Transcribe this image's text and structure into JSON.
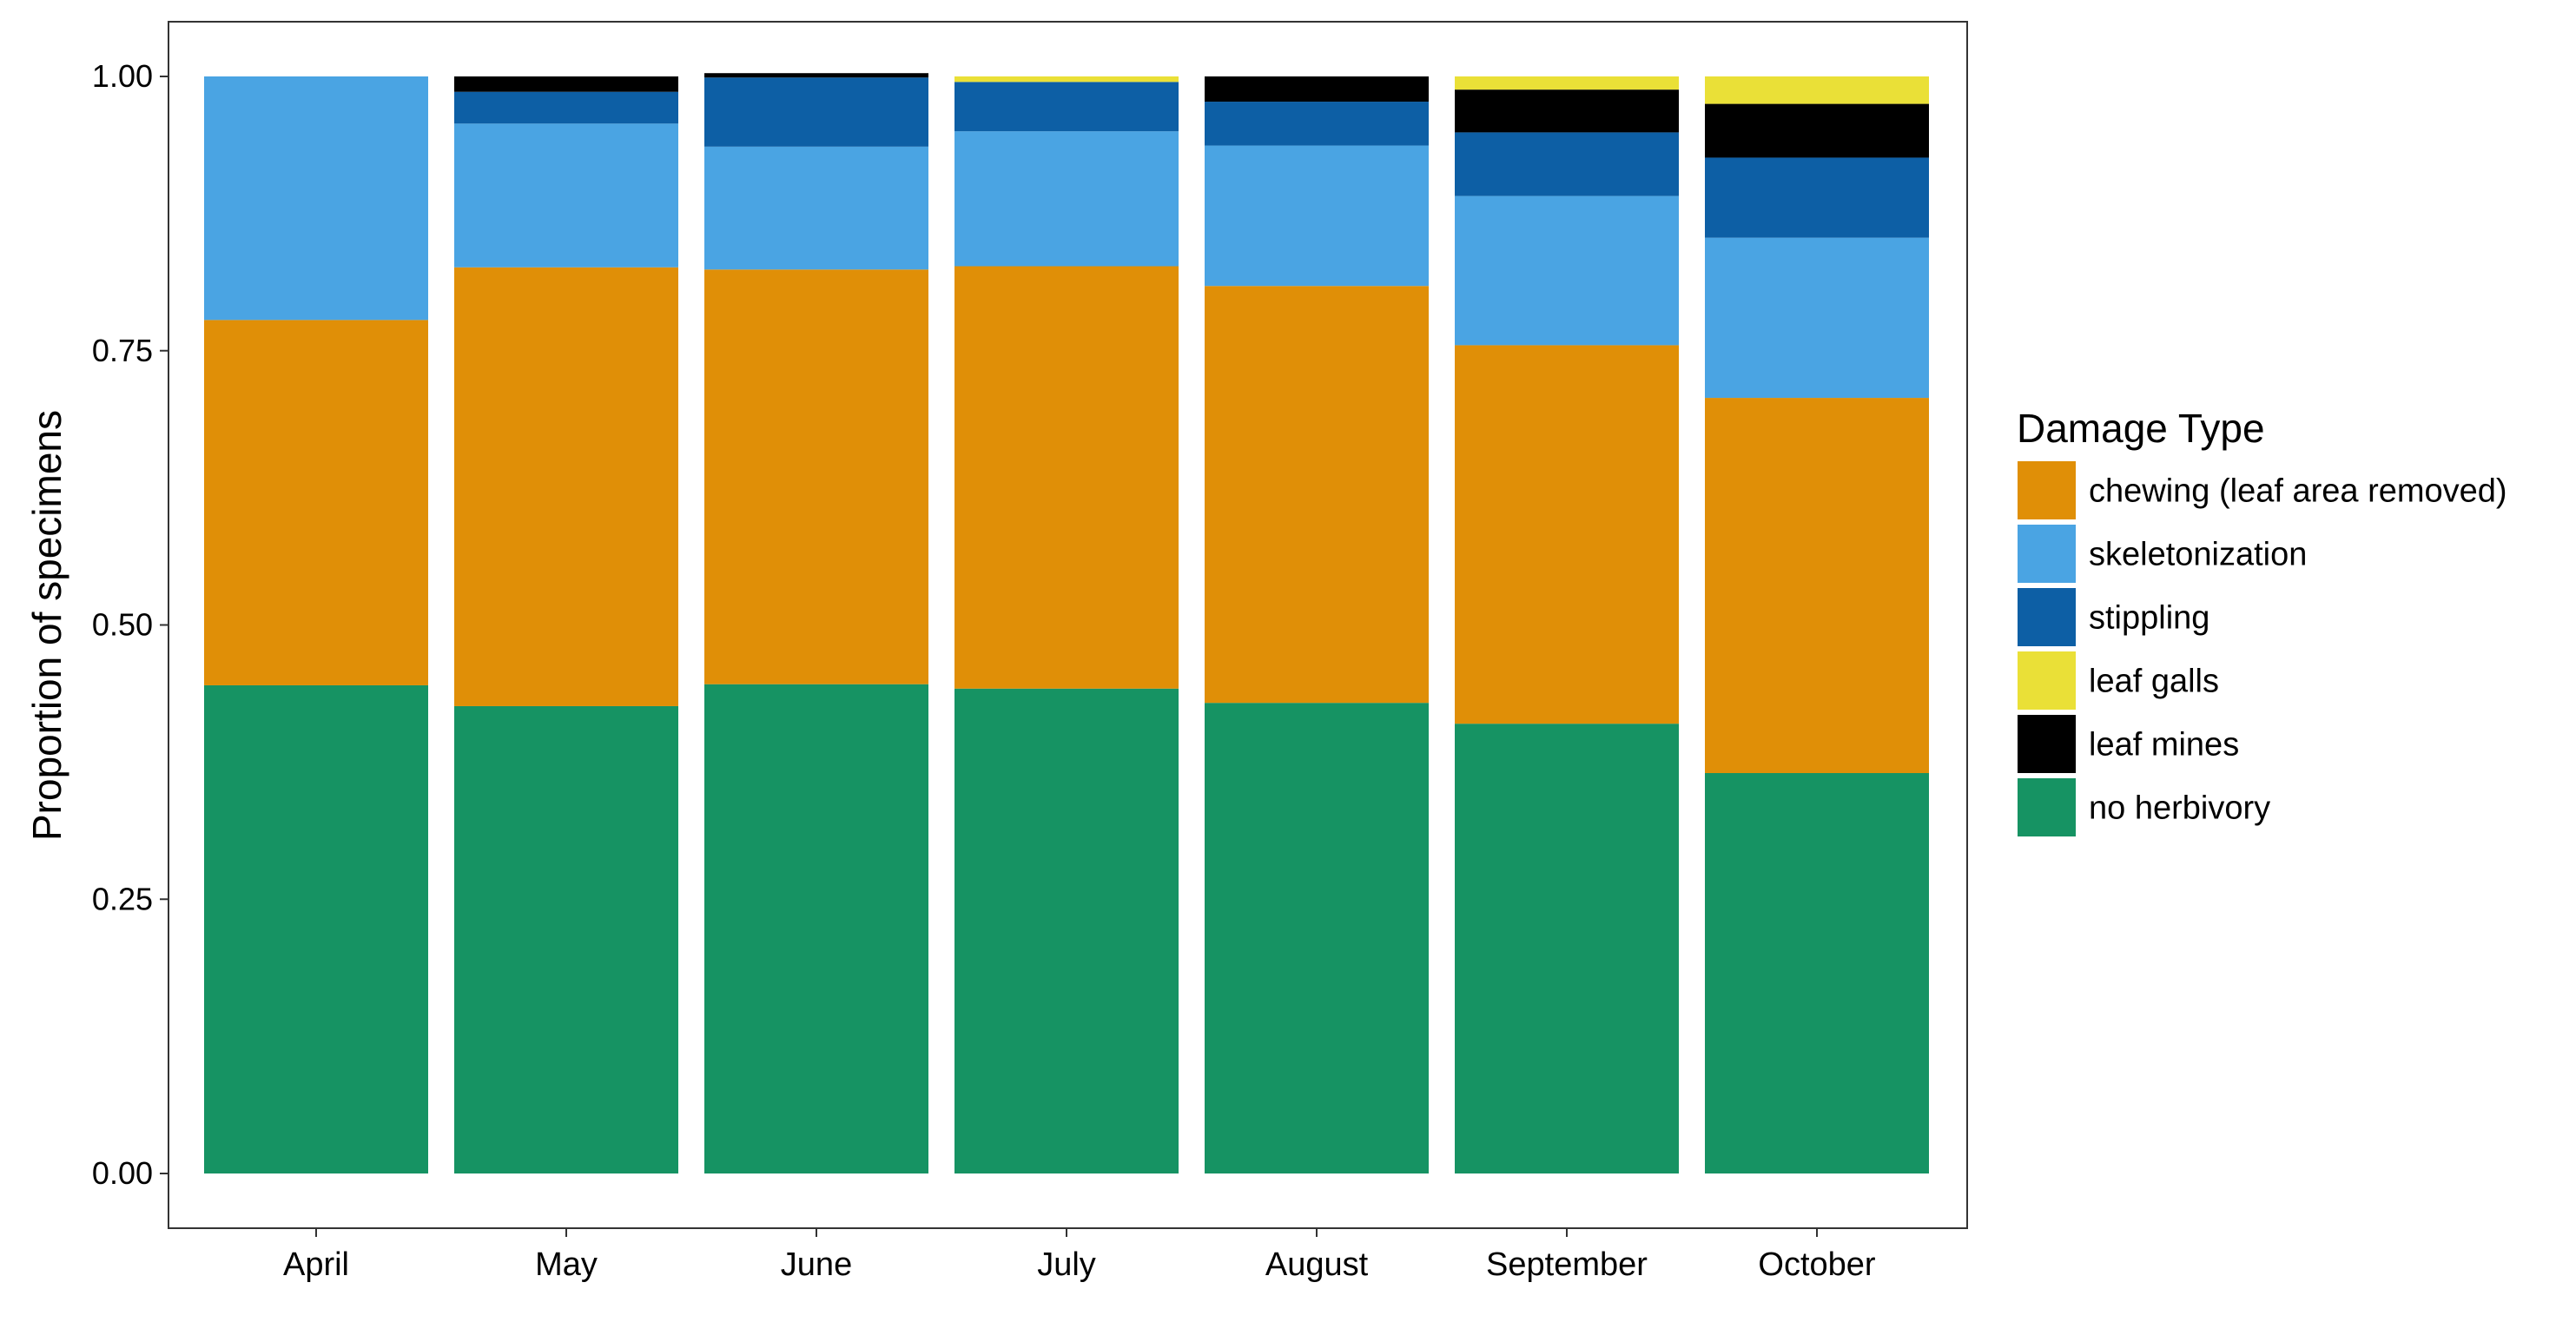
{
  "chart_data": {
    "type": "bar",
    "stacked": true,
    "categories": [
      "April",
      "May",
      "June",
      "July",
      "August",
      "September",
      "October"
    ],
    "ylabel": "Proportion of specimens",
    "xlabel": "",
    "ylim": [
      0,
      1
    ],
    "y_ticks": [
      "0.00",
      "0.25",
      "0.50",
      "0.75",
      "1.00"
    ],
    "legend": {
      "title": "Damage Type",
      "position": "right"
    },
    "stack_order": [
      "no herbivory",
      "chewing (leaf area removed)",
      "skeletonization",
      "stippling",
      "leaf mines",
      "leaf galls"
    ],
    "series": [
      {
        "name": "chewing (leaf area removed)",
        "color": "#E08F07",
        "values": [
          0.333,
          0.4,
          0.378,
          0.385,
          0.38,
          0.345,
          0.342
        ]
      },
      {
        "name": "skeletonization",
        "color": "#4AA4E3",
        "values": [
          0.222,
          0.131,
          0.112,
          0.123,
          0.128,
          0.136,
          0.146
        ]
      },
      {
        "name": "stippling",
        "color": "#0D5FA5",
        "values": [
          0.0,
          0.029,
          0.063,
          0.045,
          0.04,
          0.058,
          0.073
        ]
      },
      {
        "name": "leaf galls",
        "color": "#EAE037",
        "values": [
          0.0,
          0.0,
          0.0,
          0.005,
          0.0,
          0.012,
          0.025
        ]
      },
      {
        "name": "leaf mines",
        "color": "#000000",
        "values": [
          0.0,
          0.014,
          0.004,
          0.0,
          0.023,
          0.039,
          0.049
        ]
      },
      {
        "name": "no herbivory",
        "color": "#169363",
        "values": [
          0.445,
          0.426,
          0.446,
          0.442,
          0.429,
          0.41,
          0.365
        ]
      }
    ]
  }
}
